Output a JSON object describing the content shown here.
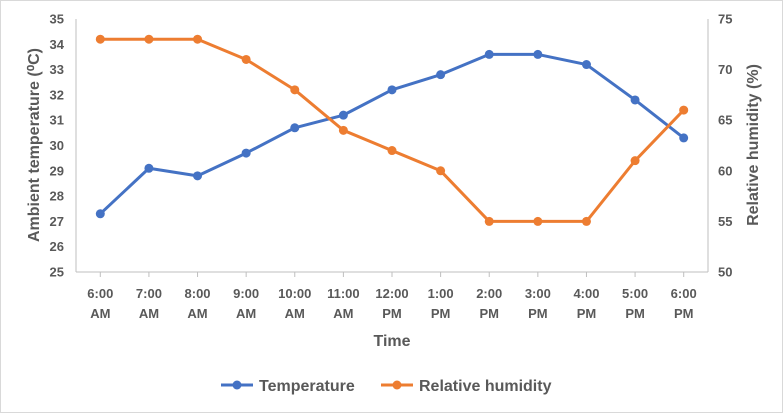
{
  "chart_data": {
    "type": "line",
    "xlabel": "Time",
    "ylabel_left": "Ambient temperature (⁰C)",
    "ylabel_right": "Relative humidity (%)",
    "categories": [
      [
        "6:00",
        "AM"
      ],
      [
        "7:00",
        "AM"
      ],
      [
        "8:00",
        "AM"
      ],
      [
        "9:00",
        "AM"
      ],
      [
        "10:00",
        "AM"
      ],
      [
        "11:00",
        "AM"
      ],
      [
        "12:00",
        "PM"
      ],
      [
        "1:00",
        "PM"
      ],
      [
        "2:00",
        "PM"
      ],
      [
        "3:00",
        "PM"
      ],
      [
        "4:00",
        "PM"
      ],
      [
        "5:00",
        "PM"
      ],
      [
        "6:00",
        "PM"
      ]
    ],
    "y_left": {
      "min": 25,
      "max": 35,
      "ticks": [
        "25",
        "26",
        "27",
        "28",
        "29",
        "30",
        "31",
        "32",
        "33",
        "34",
        "35"
      ]
    },
    "y_right": {
      "min": 50,
      "max": 75,
      "ticks": [
        "50",
        "55",
        "60",
        "65",
        "70",
        "75"
      ]
    },
    "series": [
      {
        "name": "Temperature",
        "axis": "left",
        "color": "#4472c4",
        "values": [
          27.3,
          29.1,
          28.8,
          29.7,
          30.7,
          31.2,
          32.2,
          32.8,
          33.6,
          33.6,
          33.2,
          31.8,
          30.3
        ]
      },
      {
        "name": "Relative humidity",
        "axis": "right",
        "color": "#ed7d31",
        "values": [
          73,
          73,
          73,
          71,
          68,
          64,
          62,
          60,
          55,
          55,
          55,
          61,
          66
        ]
      }
    ],
    "grid": false,
    "legend_position": "bottom"
  }
}
